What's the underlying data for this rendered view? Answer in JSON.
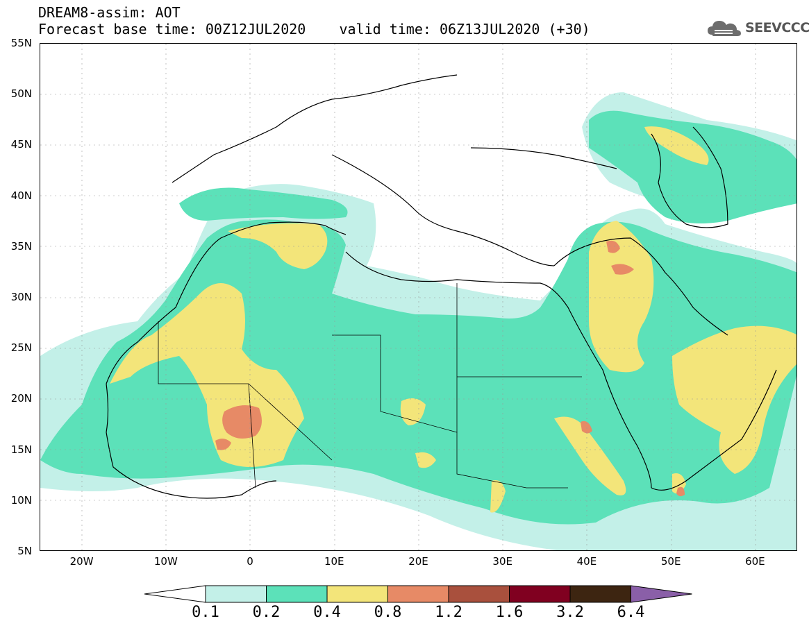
{
  "header": {
    "title_line_1": "DREAM8-assim: AOT",
    "title_line_2": "Forecast base time: 00Z12JUL2020    valid time: 06Z13JUL2020 (+30)"
  },
  "logo": {
    "text": "SEEVCCC",
    "icon": "cloud-icon"
  },
  "map": {
    "lon_range": [
      -25,
      65
    ],
    "lat_range": [
      5,
      55
    ],
    "lat_labels": [
      "5N",
      "10N",
      "15N",
      "20N",
      "25N",
      "30N",
      "35N",
      "40N",
      "45N",
      "50N",
      "55N"
    ],
    "lon_labels": [
      "20W",
      "10W",
      "0",
      "10E",
      "20E",
      "30E",
      "40E",
      "50E",
      "60E"
    ]
  },
  "colorbar": {
    "labels": [
      "0.1",
      "0.2",
      "0.4",
      "0.8",
      "1.2",
      "1.6",
      "3.2",
      "6.4"
    ],
    "colors": [
      "#c3f0e8",
      "#5ce1b9",
      "#f3e57a",
      "#e78a66",
      "#a9503d",
      "#800020",
      "#3d2511",
      "#8a5fa8"
    ],
    "under_color": "#ffffff"
  },
  "contour_levels": {
    "level_0_1": "#c3f0e8",
    "level_0_2": "#5ce1b9",
    "level_0_4": "#f3e57a",
    "level_0_8": "#e78a66",
    "level_1_2": "#a9503d"
  }
}
